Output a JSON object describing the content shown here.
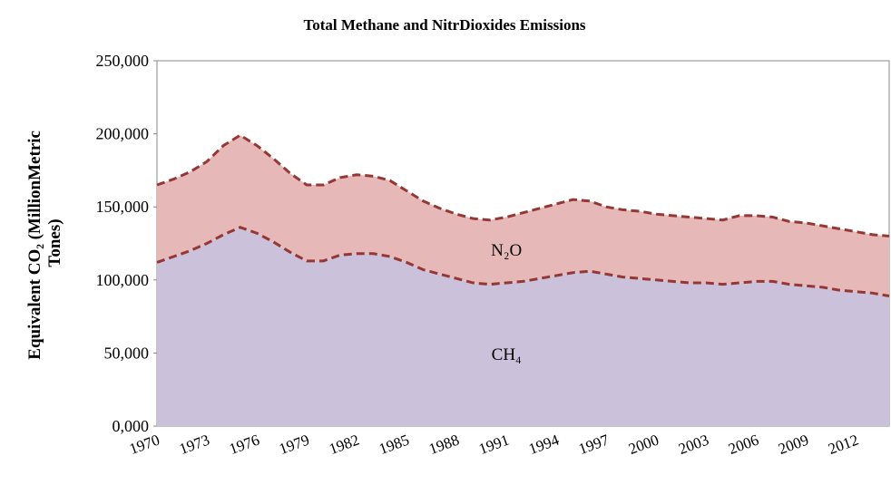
{
  "chart_data": {
    "type": "stacked_area",
    "title": "Total Methane and NitrDioxides Emissions",
    "y_label": [
      "Equivalent CO₂ (MillionMetric",
      "Tones)"
    ],
    "categories": [
      "1970",
      null,
      null,
      "1973",
      null,
      null,
      "1976",
      null,
      null,
      "1979",
      null,
      null,
      "1982",
      null,
      null,
      "1985",
      null,
      null,
      "1988",
      null,
      null,
      "1991",
      null,
      null,
      "1994",
      null,
      null,
      "1997",
      null,
      null,
      "2000",
      null,
      null,
      "2003",
      null,
      null,
      "2006",
      null,
      null,
      "2009",
      null,
      null,
      "2012",
      null,
      null
    ],
    "series": [
      {
        "name": "CH₄",
        "color": "#ccc1da",
        "line_color": "#953735",
        "values": [
          112000,
          116000,
          120000,
          125000,
          131000,
          136000,
          132000,
          126000,
          119000,
          113000,
          113000,
          117000,
          118000,
          118000,
          116000,
          112000,
          107000,
          104000,
          101000,
          98000,
          97000,
          98000,
          99000,
          101000,
          103000,
          105000,
          106000,
          104000,
          102000,
          101000,
          100000,
          99000,
          98000,
          98000,
          97000,
          98000,
          99000,
          99000,
          97000,
          96000,
          95000,
          93000,
          92000,
          91000,
          89000
        ]
      },
      {
        "name": "N₂O",
        "color": "#e6b9b8",
        "line_color": "#953735",
        "values": [
          53000,
          53000,
          54000,
          56000,
          61000,
          63000,
          60000,
          57000,
          54000,
          52000,
          52000,
          53000,
          54000,
          53000,
          52000,
          49000,
          47000,
          45000,
          44000,
          44000,
          44000,
          45000,
          47000,
          48000,
          49000,
          50000,
          48000,
          46000,
          46000,
          46000,
          45000,
          45000,
          45000,
          44000,
          44000,
          46000,
          45000,
          44000,
          43000,
          43000,
          42000,
          42000,
          41000,
          40000,
          41000
        ]
      }
    ],
    "ylim": [
      0,
      250000
    ],
    "yticks": [
      {
        "value": 0,
        "label": "0,000"
      },
      {
        "value": 50000,
        "label": "50,000"
      },
      {
        "value": 100000,
        "label": "100,000"
      },
      {
        "value": 150000,
        "label": "150,000"
      },
      {
        "value": 200000,
        "label": "200,000"
      },
      {
        "value": 250000,
        "label": "250,000"
      }
    ]
  }
}
